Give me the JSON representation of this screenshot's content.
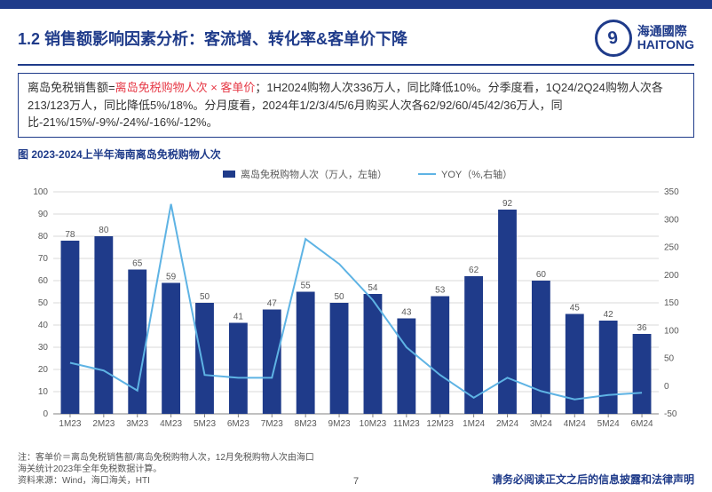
{
  "header": {
    "title": "1.2 销售额影响因素分析：客流增、转化率&客单价下降",
    "brand_cn": "海通國際",
    "brand_en": "HAITONG"
  },
  "summary": {
    "line1_pre": "离岛免税销售额=",
    "line1_accent": "离岛免税购物人次 × 客单价",
    "line1_post": "；1H2024购物人次336万人，同比降低10%。分季度看，1Q24/2Q24购物人次各213/123万人，同比降低5%/18%。分月度看，2024年1/2/3/4/5/6月购买人次各62/92/60/45/42/36万人，同比-21%/15%/-9%/-24%/-16%/-12%。"
  },
  "chart": {
    "title": "图 2023-2024上半年海南离岛免税购物人次",
    "legend_bar": "离岛免税购物人次（万人，左轴）",
    "legend_line": "YOY（%,右轴）",
    "categories": [
      "1M23",
      "2M23",
      "3M23",
      "4M23",
      "5M23",
      "6M23",
      "7M23",
      "8M23",
      "9M23",
      "10M23",
      "11M23",
      "12M23",
      "1M24",
      "2M24",
      "3M24",
      "4M24",
      "5M24",
      "6M24"
    ],
    "bar_values": [
      78,
      80,
      65,
      59,
      50,
      41,
      47,
      55,
      50,
      54,
      43,
      53,
      62,
      92,
      60,
      45,
      42,
      36
    ],
    "line_values": [
      42,
      28,
      -8,
      328,
      20,
      15,
      15,
      265,
      220,
      155,
      70,
      20,
      -21,
      15,
      -9,
      -24,
      -16,
      -12
    ],
    "left_ylim": [
      0,
      100
    ],
    "left_ticks": [
      0,
      10,
      20,
      30,
      40,
      50,
      60,
      70,
      80,
      90,
      100
    ],
    "right_ylim": [
      -50,
      350
    ],
    "right_ticks": [
      -50,
      0,
      50,
      100,
      150,
      200,
      250,
      300,
      350
    ],
    "bar_color": "#1f3b8a",
    "line_color": "#5eb3e4",
    "grid_color": "#d9d9d9",
    "axis_color": "#808080",
    "label_color": "#595959",
    "plot_bg": "#ffffff",
    "bar_width_ratio": 0.55,
    "label_fontsize": 10,
    "value_label_fontsize": 10
  },
  "footer": {
    "note": "注：客单价＝离岛免税销售额/离岛免税购物人次，12月免税购物人次由海口海关统计2023年全年免税数据计算。",
    "source": "资料来源：Wind，海口海关，HTI",
    "disclaimer": "请务必阅读正文之后的信息披露和法律声明",
    "page": "7"
  }
}
